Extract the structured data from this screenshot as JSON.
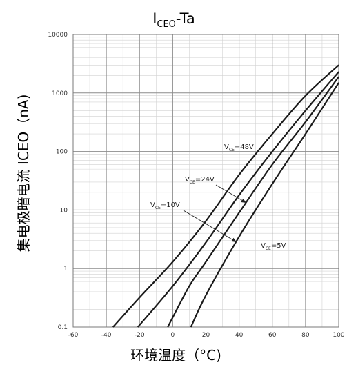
{
  "chart_data": {
    "type": "line",
    "title_main": "I",
    "title_sub": "CEO",
    "title_tail": "-Ta",
    "xlabel": "环境温度（°C)",
    "ylabel": "集电极暗电流 ICEO（nA)",
    "x_scale": "linear",
    "y_scale": "log",
    "xlim": [
      -60,
      100
    ],
    "ylim": [
      0.1,
      10000
    ],
    "x_ticks": [
      "-60",
      "-40",
      "-20",
      "0",
      "20",
      "40",
      "60",
      "80",
      "100"
    ],
    "y_ticks": [
      "0.1",
      "1",
      "10",
      "100",
      "1000",
      "10000"
    ],
    "grid": true,
    "series": [
      {
        "name": "V_CE=48V",
        "label_main": "V",
        "label_sub": "CE",
        "label_tail": "=48V",
        "x": [
          -36,
          -20,
          0,
          20,
          40,
          60,
          80,
          100
        ],
        "y": [
          0.1,
          0.32,
          1.3,
          6.5,
          40,
          200,
          900,
          3000
        ]
      },
      {
        "name": "V_CE=24V",
        "label_main": "V",
        "label_sub": "CE",
        "label_tail": "=24V",
        "x": [
          -21,
          0,
          20,
          40,
          60,
          80,
          100
        ],
        "y": [
          0.1,
          0.5,
          2.8,
          18,
          100,
          500,
          2300
        ]
      },
      {
        "name": "V_CE=10V",
        "label_main": "V",
        "label_sub": "CE",
        "label_tail": "=10V",
        "x": [
          -3,
          10,
          20,
          40,
          60,
          80,
          100
        ],
        "y": [
          0.1,
          0.5,
          1.3,
          9,
          60,
          320,
          1900
        ]
      },
      {
        "name": "V_CE=5V",
        "label_main": "V",
        "label_sub": "CE",
        "label_tail": "=5V",
        "x": [
          11,
          20,
          40,
          60,
          80,
          100
        ],
        "y": [
          0.1,
          0.35,
          3.5,
          28,
          200,
          1500
        ]
      }
    ]
  }
}
